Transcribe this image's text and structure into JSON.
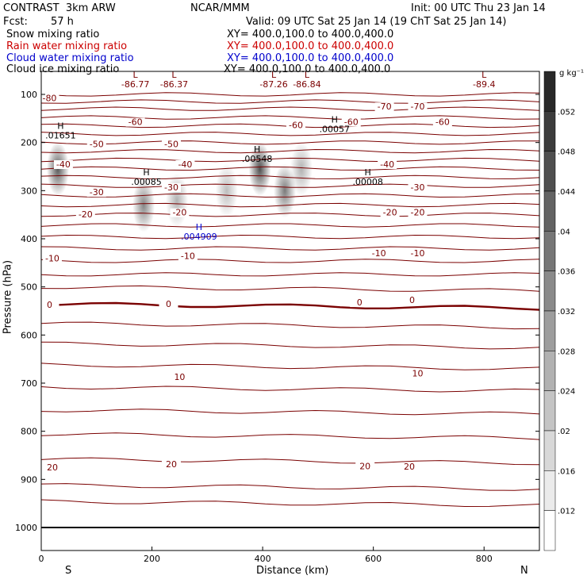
{
  "header": {
    "model": "CONTRAST  3km ARW",
    "center": "NCAR/MMM",
    "init": "Init: 00 UTC Thu 23 Jan 14",
    "fcst_label": "Fcst:",
    "fcst_value": "57 h",
    "valid": "Valid: 09 UTC Sat 25 Jan 14 (19 ChT Sat 25 Jan 14)"
  },
  "fields": [
    {
      "name": "Snow mixing ratio",
      "xy": "XY= 400.0,100.0 to 400.0,400.0",
      "color": "#000000"
    },
    {
      "name": "Rain water mixing ratio",
      "xy": "XY= 400.0,100.0 to 400.0,400.0",
      "color": "#cc0000"
    },
    {
      "name": "Cloud water mixing ratio",
      "xy": "XY= 400.0,100.0 to 400.0,400.0",
      "color": "#0000cc"
    },
    {
      "name": "Cloud ice mixing ratio",
      "xy": "XY= 400.0,100.0 to 400.0,400.0",
      "color": "#000000"
    }
  ],
  "chart_data": {
    "type": "heatmap",
    "xlabel": "Distance (km)",
    "ylabel": "Pressure (hPa)",
    "xlim": [
      0,
      900
    ],
    "ylim": [
      1050,
      50
    ],
    "x_ticks": [
      "0",
      "200",
      "400",
      "600",
      "800"
    ],
    "y_ticks": [
      "100",
      "200",
      "300",
      "400",
      "500",
      "600",
      "700",
      "800",
      "900",
      "1000"
    ],
    "x_ends": {
      "left": "S",
      "right": "N"
    },
    "colorbar": {
      "unit": "g kg⁻¹",
      "ticks": [
        ".052",
        ".048",
        ".044",
        ".04",
        ".036",
        ".032",
        ".028",
        ".024",
        ".02",
        ".016",
        ".012"
      ]
    },
    "temperature_contours": {
      "color": "#7a0000",
      "labels": [
        {
          "t": "-80",
          "x": 15,
          "p": 112
        },
        {
          "t": "-70",
          "x": 620,
          "p": 130
        },
        {
          "t": "-70",
          "x": 680,
          "p": 130
        },
        {
          "t": "-60",
          "x": 170,
          "p": 162
        },
        {
          "t": "-60",
          "x": 460,
          "p": 168
        },
        {
          "t": "-60",
          "x": 560,
          "p": 162
        },
        {
          "t": "-60",
          "x": 725,
          "p": 162
        },
        {
          "t": "-50",
          "x": 100,
          "p": 208
        },
        {
          "t": "-50",
          "x": 235,
          "p": 208
        },
        {
          "t": "-40",
          "x": 40,
          "p": 250
        },
        {
          "t": "-40",
          "x": 260,
          "p": 250
        },
        {
          "t": "-40",
          "x": 625,
          "p": 250
        },
        {
          "t": "-30",
          "x": 100,
          "p": 308
        },
        {
          "t": "-30",
          "x": 235,
          "p": 298
        },
        {
          "t": "-30",
          "x": 680,
          "p": 298
        },
        {
          "t": "-20",
          "x": 80,
          "p": 354
        },
        {
          "t": "-20",
          "x": 250,
          "p": 350
        },
        {
          "t": "-20",
          "x": 630,
          "p": 350
        },
        {
          "t": "-20",
          "x": 680,
          "p": 350
        },
        {
          "t": "-10",
          "x": 20,
          "p": 445
        },
        {
          "t": "-10",
          "x": 265,
          "p": 440
        },
        {
          "t": "-10",
          "x": 610,
          "p": 435
        },
        {
          "t": "-10",
          "x": 680,
          "p": 435
        },
        {
          "t": "0",
          "x": 15,
          "p": 542
        },
        {
          "t": "0",
          "x": 230,
          "p": 540
        },
        {
          "t": "0",
          "x": 575,
          "p": 537
        },
        {
          "t": "0",
          "x": 670,
          "p": 532
        },
        {
          "t": "10",
          "x": 250,
          "p": 692
        },
        {
          "t": "10",
          "x": 680,
          "p": 684
        },
        {
          "t": "20",
          "x": 20,
          "p": 880
        },
        {
          "t": "20",
          "x": 235,
          "p": 873
        },
        {
          "t": "20",
          "x": 585,
          "p": 877
        },
        {
          "t": "20",
          "x": 665,
          "p": 878
        }
      ]
    },
    "extrema": [
      {
        "type": "L",
        "value": "-86.77",
        "x": 170,
        "p": 82,
        "color": "#7a0000"
      },
      {
        "type": "L",
        "value": "-86.37",
        "x": 240,
        "p": 82,
        "color": "#7a0000"
      },
      {
        "type": "L",
        "value": "-87.26",
        "x": 420,
        "p": 82,
        "color": "#7a0000"
      },
      {
        "type": "L",
        "value": "-86.84",
        "x": 480,
        "p": 82,
        "color": "#7a0000"
      },
      {
        "type": "L",
        "value": "-89.4",
        "x": 800,
        "p": 82,
        "color": "#7a0000"
      },
      {
        "type": "H",
        "value": ".01651",
        "x": 35,
        "p": 188,
        "color": "#000000"
      },
      {
        "type": "H",
        "value": ".00057",
        "x": 530,
        "p": 175,
        "color": "#000000"
      },
      {
        "type": "H",
        "value": ".00548",
        "x": 390,
        "p": 237,
        "color": "#000000"
      },
      {
        "type": "H",
        "value": ".00085",
        "x": 190,
        "p": 285,
        "color": "#000000"
      },
      {
        "type": "H",
        "value": ".00008",
        "x": 590,
        "p": 285,
        "color": "#000000"
      },
      {
        "type": "H",
        "value": ".004909",
        "x": 285,
        "p": 398,
        "color": "#0000cc"
      }
    ],
    "shaded_cells": [
      {
        "x": 30,
        "p": 255,
        "level": 0.75
      },
      {
        "x": 185,
        "p": 330,
        "level": 0.55
      },
      {
        "x": 245,
        "p": 320,
        "level": 0.35
      },
      {
        "x": 335,
        "p": 300,
        "level": 0.3
      },
      {
        "x": 395,
        "p": 255,
        "level": 0.8
      },
      {
        "x": 440,
        "p": 300,
        "level": 0.6
      },
      {
        "x": 470,
        "p": 255,
        "level": 0.35
      }
    ]
  }
}
